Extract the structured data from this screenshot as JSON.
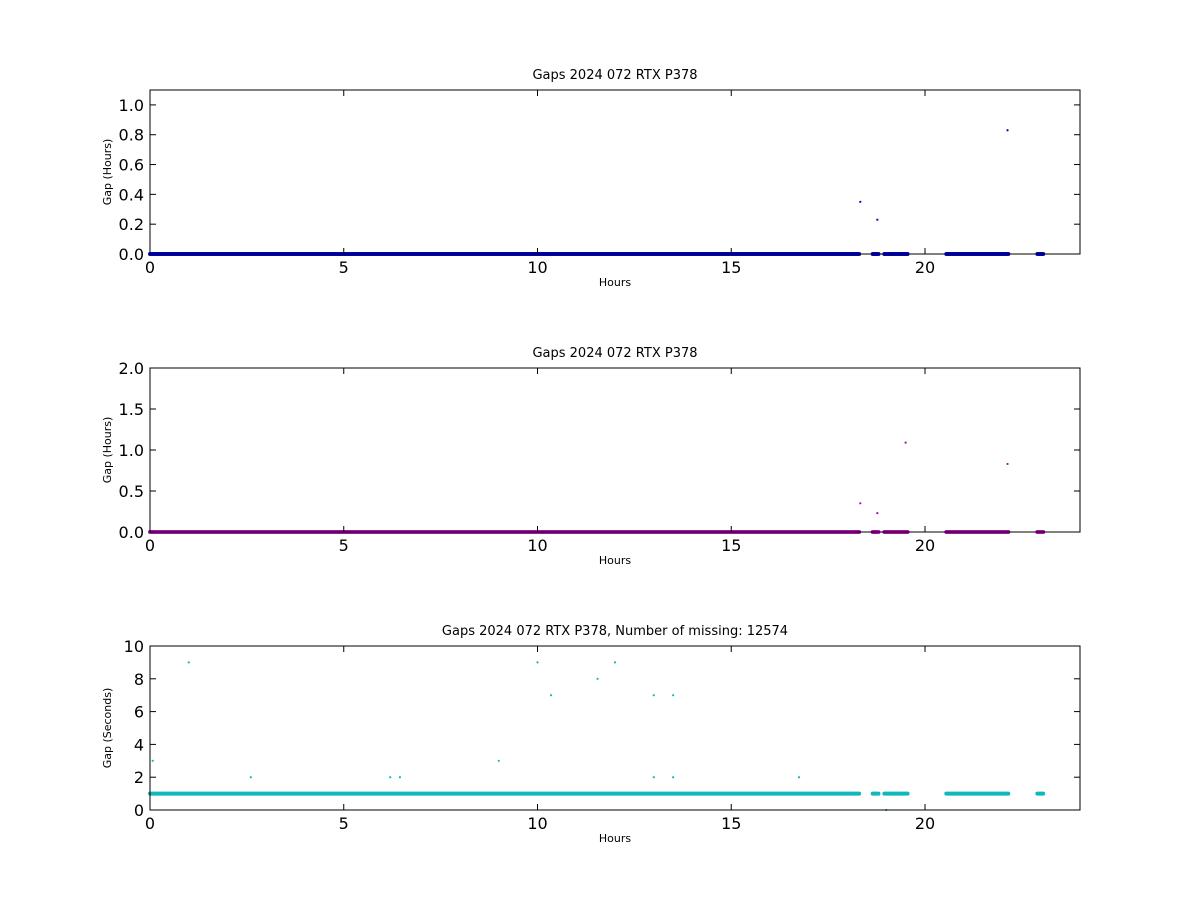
{
  "chart_data": [
    {
      "type": "scatter",
      "title": "Gaps 2024 072 RTX  P378",
      "xlabel": "Hours",
      "ylabel": "Gap (Hours)",
      "xlim": [
        0,
        24
      ],
      "ylim": [
        0,
        1.1
      ],
      "xticks": [
        "0",
        "5",
        "10",
        "15",
        "20"
      ],
      "yticks": [
        "0.0",
        "0.2",
        "0.4",
        "0.6",
        "0.8",
        "1.0"
      ],
      "color": "#0000cc",
      "dense_segments": [
        [
          0,
          18.3,
          0
        ],
        [
          18.65,
          18.8,
          0
        ],
        [
          18.95,
          19.55,
          0
        ],
        [
          20.55,
          22.15,
          0
        ],
        [
          22.9,
          23.05,
          0
        ]
      ],
      "points": [
        [
          18.33,
          0.35
        ],
        [
          18.77,
          0.23
        ],
        [
          22.13,
          0.83
        ]
      ]
    },
    {
      "type": "scatter",
      "title": "Gaps 2024 072 RTX  P378",
      "xlabel": "Hours",
      "ylabel": "Gap (Hours)",
      "xlim": [
        0,
        24
      ],
      "ylim": [
        0,
        2.0
      ],
      "xticks": [
        "0",
        "5",
        "10",
        "15",
        "20"
      ],
      "yticks": [
        "0.0",
        "0.5",
        "1.0",
        "1.5",
        "2.0"
      ],
      "color": "#aa10aa",
      "dense_segments": [
        [
          0,
          18.3,
          0
        ],
        [
          18.65,
          18.8,
          0
        ],
        [
          18.95,
          19.55,
          0
        ],
        [
          20.55,
          22.15,
          0
        ],
        [
          22.9,
          23.05,
          0
        ]
      ],
      "points": [
        [
          18.33,
          0.35
        ],
        [
          18.77,
          0.23
        ],
        [
          19.5,
          1.09
        ],
        [
          22.13,
          0.83
        ]
      ]
    },
    {
      "type": "scatter",
      "title": "Gaps 2024 072 RTX  P378, Number of missing: 12574",
      "xlabel": "Hours",
      "ylabel": "Gap (Seconds)",
      "xlim": [
        0,
        24
      ],
      "ylim": [
        0,
        10
      ],
      "xticks": [
        "0",
        "5",
        "10",
        "15",
        "20"
      ],
      "yticks": [
        "0",
        "2",
        "4",
        "6",
        "8",
        "10"
      ],
      "color": "#10b8b8",
      "dense_segments": [
        [
          0,
          18.3,
          1
        ],
        [
          18.65,
          18.8,
          1
        ],
        [
          18.95,
          19.55,
          1
        ],
        [
          20.55,
          22.15,
          1
        ],
        [
          22.9,
          23.05,
          1
        ]
      ],
      "points": [
        [
          0.07,
          3
        ],
        [
          1.0,
          9
        ],
        [
          2.6,
          2
        ],
        [
          6.2,
          2
        ],
        [
          6.45,
          2
        ],
        [
          9.0,
          3
        ],
        [
          10.0,
          9
        ],
        [
          10.35,
          7
        ],
        [
          11.55,
          8
        ],
        [
          12.0,
          9
        ],
        [
          13.0,
          7
        ],
        [
          13.0,
          2
        ],
        [
          13.5,
          7
        ],
        [
          13.5,
          2
        ],
        [
          16.75,
          2
        ],
        [
          19.0,
          0
        ]
      ]
    }
  ]
}
